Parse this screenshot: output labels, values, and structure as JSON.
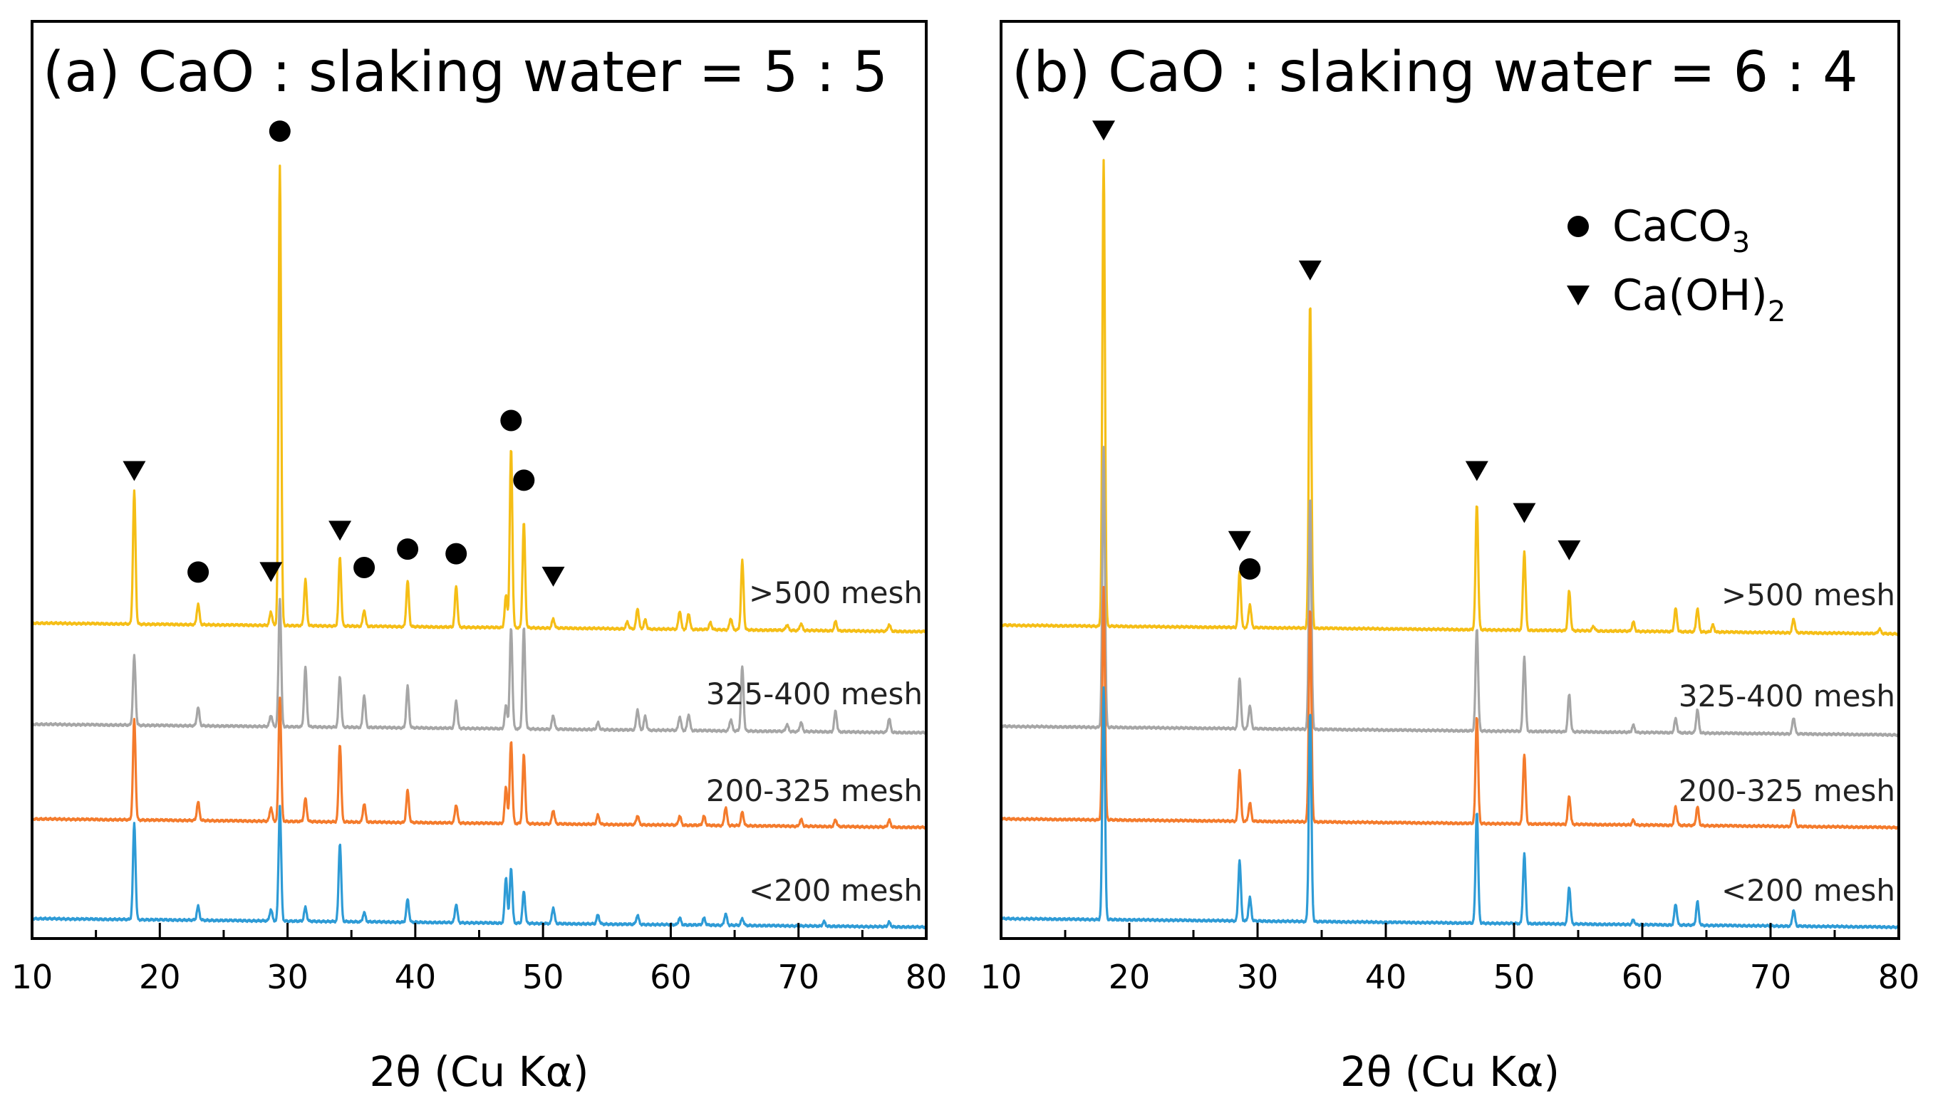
{
  "chart_data": [
    {
      "type": "line",
      "panel": "a",
      "title": "(a) CaO : slaking water = 5 : 5",
      "xlabel": "2θ (Cu Kα)",
      "ylabel": "",
      "xlim": [
        10,
        80
      ],
      "xticks": [
        10,
        20,
        30,
        40,
        50,
        60,
        70,
        80
      ],
      "xtick_labels": [
        "10",
        "20",
        "30",
        "40",
        "50",
        "60",
        "70",
        "80"
      ],
      "grid": false,
      "series": [
        {
          "name": ">500 mesh",
          "color": "#F5BE16",
          "peaks": [
            {
              "x": 18.0,
              "h": 0.29
            },
            {
              "x": 23.0,
              "h": 0.045
            },
            {
              "x": 28.7,
              "h": 0.03
            },
            {
              "x": 29.4,
              "h": 1.0
            },
            {
              "x": 31.4,
              "h": 0.1
            },
            {
              "x": 34.1,
              "h": 0.15
            },
            {
              "x": 36.0,
              "h": 0.035
            },
            {
              "x": 39.4,
              "h": 0.1
            },
            {
              "x": 43.2,
              "h": 0.09
            },
            {
              "x": 47.1,
              "h": 0.07
            },
            {
              "x": 47.5,
              "h": 0.39
            },
            {
              "x": 48.5,
              "h": 0.23
            },
            {
              "x": 50.8,
              "h": 0.02
            },
            {
              "x": 56.6,
              "h": 0.015
            },
            {
              "x": 57.4,
              "h": 0.045
            },
            {
              "x": 58.0,
              "h": 0.02
            },
            {
              "x": 60.7,
              "h": 0.04
            },
            {
              "x": 61.4,
              "h": 0.035
            },
            {
              "x": 63.1,
              "h": 0.015
            },
            {
              "x": 64.7,
              "h": 0.025
            },
            {
              "x": 65.6,
              "h": 0.15
            },
            {
              "x": 69.1,
              "h": 0.012
            },
            {
              "x": 70.2,
              "h": 0.015
            },
            {
              "x": 72.9,
              "h": 0.02
            },
            {
              "x": 77.1,
              "h": 0.015
            }
          ]
        },
        {
          "name": "325-400 mesh",
          "color": "#A6A6A6",
          "peaks": [
            {
              "x": 18.0,
              "h": 0.15
            },
            {
              "x": 23.0,
              "h": 0.04
            },
            {
              "x": 28.7,
              "h": 0.025
            },
            {
              "x": 29.4,
              "h": 0.28
            },
            {
              "x": 31.4,
              "h": 0.13
            },
            {
              "x": 34.1,
              "h": 0.11
            },
            {
              "x": 36.0,
              "h": 0.07
            },
            {
              "x": 39.4,
              "h": 0.09
            },
            {
              "x": 43.2,
              "h": 0.06
            },
            {
              "x": 47.1,
              "h": 0.05
            },
            {
              "x": 47.5,
              "h": 0.22
            },
            {
              "x": 48.5,
              "h": 0.22
            },
            {
              "x": 50.8,
              "h": 0.03
            },
            {
              "x": 54.3,
              "h": 0.015
            },
            {
              "x": 57.4,
              "h": 0.045
            },
            {
              "x": 58.0,
              "h": 0.03
            },
            {
              "x": 60.7,
              "h": 0.03
            },
            {
              "x": 61.4,
              "h": 0.035
            },
            {
              "x": 64.7,
              "h": 0.025
            },
            {
              "x": 65.6,
              "h": 0.14
            },
            {
              "x": 69.1,
              "h": 0.015
            },
            {
              "x": 70.2,
              "h": 0.02
            },
            {
              "x": 72.9,
              "h": 0.045
            },
            {
              "x": 77.1,
              "h": 0.03
            }
          ]
        },
        {
          "name": "200-325 mesh",
          "color": "#F47B2C",
          "peaks": [
            {
              "x": 18.0,
              "h": 0.22
            },
            {
              "x": 23.0,
              "h": 0.04
            },
            {
              "x": 28.7,
              "h": 0.03
            },
            {
              "x": 29.4,
              "h": 0.27
            },
            {
              "x": 31.4,
              "h": 0.05
            },
            {
              "x": 34.1,
              "h": 0.17
            },
            {
              "x": 36.0,
              "h": 0.04
            },
            {
              "x": 39.4,
              "h": 0.07
            },
            {
              "x": 43.2,
              "h": 0.04
            },
            {
              "x": 47.1,
              "h": 0.08
            },
            {
              "x": 47.5,
              "h": 0.18
            },
            {
              "x": 48.5,
              "h": 0.15
            },
            {
              "x": 50.8,
              "h": 0.03
            },
            {
              "x": 54.3,
              "h": 0.02
            },
            {
              "x": 57.4,
              "h": 0.02
            },
            {
              "x": 60.7,
              "h": 0.02
            },
            {
              "x": 62.6,
              "h": 0.02
            },
            {
              "x": 64.3,
              "h": 0.04
            },
            {
              "x": 65.6,
              "h": 0.03
            },
            {
              "x": 70.2,
              "h": 0.015
            },
            {
              "x": 72.9,
              "h": 0.015
            },
            {
              "x": 77.1,
              "h": 0.015
            }
          ]
        },
        {
          "name": "<200 mesh",
          "color": "#2E9BD6",
          "peaks": [
            {
              "x": 18.0,
              "h": 0.21
            },
            {
              "x": 23.0,
              "h": 0.03
            },
            {
              "x": 28.7,
              "h": 0.025
            },
            {
              "x": 29.4,
              "h": 0.25
            },
            {
              "x": 31.4,
              "h": 0.03
            },
            {
              "x": 34.1,
              "h": 0.17
            },
            {
              "x": 36.0,
              "h": 0.02
            },
            {
              "x": 39.4,
              "h": 0.05
            },
            {
              "x": 43.2,
              "h": 0.04
            },
            {
              "x": 47.1,
              "h": 0.1
            },
            {
              "x": 47.5,
              "h": 0.12
            },
            {
              "x": 48.5,
              "h": 0.07
            },
            {
              "x": 50.8,
              "h": 0.035
            },
            {
              "x": 54.3,
              "h": 0.02
            },
            {
              "x": 57.4,
              "h": 0.02
            },
            {
              "x": 60.7,
              "h": 0.015
            },
            {
              "x": 62.6,
              "h": 0.015
            },
            {
              "x": 64.3,
              "h": 0.025
            },
            {
              "x": 65.6,
              "h": 0.015
            },
            {
              "x": 72.0,
              "h": 0.01
            },
            {
              "x": 77.1,
              "h": 0.01
            }
          ]
        }
      ],
      "markers": [
        {
          "x": 18.0,
          "phase": "Ca(OH)2",
          "level": 0.3
        },
        {
          "x": 23.0,
          "phase": "CaCO3",
          "level": 0.08
        },
        {
          "x": 28.7,
          "phase": "Ca(OH)2",
          "level": 0.08
        },
        {
          "x": 29.4,
          "phase": "CaCO3",
          "level": 1.04
        },
        {
          "x": 34.1,
          "phase": "Ca(OH)2",
          "level": 0.17
        },
        {
          "x": 36.0,
          "phase": "CaCO3",
          "level": 0.09
        },
        {
          "x": 39.4,
          "phase": "CaCO3",
          "level": 0.13
        },
        {
          "x": 43.2,
          "phase": "CaCO3",
          "level": 0.12
        },
        {
          "x": 47.5,
          "phase": "CaCO3",
          "level": 0.41
        },
        {
          "x": 48.5,
          "phase": "CaCO3",
          "level": 0.28
        },
        {
          "x": 50.8,
          "phase": "Ca(OH)2",
          "level": 0.07
        }
      ]
    },
    {
      "type": "line",
      "panel": "b",
      "title": "(b) CaO : slaking water = 6 : 4",
      "xlabel": "2θ (Cu Kα)",
      "ylabel": "",
      "xlim": [
        10,
        80
      ],
      "xticks": [
        10,
        20,
        30,
        40,
        50,
        60,
        70,
        80
      ],
      "xtick_labels": [
        "10",
        "20",
        "30",
        "40",
        "50",
        "60",
        "70",
        "80"
      ],
      "grid": false,
      "legend": {
        "position": "top-right",
        "entries": [
          {
            "symbol": "circle",
            "label": "CaCO",
            "sub": "3"
          },
          {
            "symbol": "triangle",
            "label": "Ca(OH)",
            "sub": "2"
          }
        ]
      },
      "series": [
        {
          "name": ">500 mesh",
          "color": "#F5BE16",
          "peaks": [
            {
              "x": 18.0,
              "h": 1.0
            },
            {
              "x": 28.6,
              "h": 0.12
            },
            {
              "x": 29.4,
              "h": 0.05
            },
            {
              "x": 34.1,
              "h": 0.7
            },
            {
              "x": 47.1,
              "h": 0.27
            },
            {
              "x": 50.8,
              "h": 0.17
            },
            {
              "x": 54.3,
              "h": 0.085
            },
            {
              "x": 56.2,
              "h": 0.01
            },
            {
              "x": 59.3,
              "h": 0.02
            },
            {
              "x": 62.6,
              "h": 0.05
            },
            {
              "x": 64.3,
              "h": 0.05
            },
            {
              "x": 65.5,
              "h": 0.015
            },
            {
              "x": 71.8,
              "h": 0.03
            },
            {
              "x": 78.5,
              "h": 0.01
            }
          ]
        },
        {
          "name": "325-400 mesh",
          "color": "#A6A6A6",
          "peaks": [
            {
              "x": 18.0,
              "h": 0.6
            },
            {
              "x": 28.6,
              "h": 0.11
            },
            {
              "x": 29.4,
              "h": 0.05
            },
            {
              "x": 34.1,
              "h": 0.5
            },
            {
              "x": 47.1,
              "h": 0.22
            },
            {
              "x": 50.8,
              "h": 0.16
            },
            {
              "x": 54.3,
              "h": 0.08
            },
            {
              "x": 59.3,
              "h": 0.015
            },
            {
              "x": 62.6,
              "h": 0.03
            },
            {
              "x": 64.3,
              "h": 0.05
            },
            {
              "x": 71.8,
              "h": 0.035
            }
          ]
        },
        {
          "name": "200-325 mesh",
          "color": "#F47B2C",
          "peaks": [
            {
              "x": 18.0,
              "h": 0.5
            },
            {
              "x": 28.6,
              "h": 0.11
            },
            {
              "x": 29.4,
              "h": 0.04
            },
            {
              "x": 34.1,
              "h": 0.46
            },
            {
              "x": 47.1,
              "h": 0.23
            },
            {
              "x": 50.8,
              "h": 0.15
            },
            {
              "x": 54.3,
              "h": 0.06
            },
            {
              "x": 59.3,
              "h": 0.01
            },
            {
              "x": 62.6,
              "h": 0.04
            },
            {
              "x": 64.3,
              "h": 0.04
            },
            {
              "x": 71.8,
              "h": 0.035
            }
          ]
        },
        {
          "name": "<200 mesh",
          "color": "#2E9BD6",
          "peaks": [
            {
              "x": 18.0,
              "h": 0.5
            },
            {
              "x": 28.6,
              "h": 0.13
            },
            {
              "x": 29.4,
              "h": 0.05
            },
            {
              "x": 34.1,
              "h": 0.45
            },
            {
              "x": 47.1,
              "h": 0.24
            },
            {
              "x": 50.8,
              "h": 0.15
            },
            {
              "x": 54.3,
              "h": 0.08
            },
            {
              "x": 59.3,
              "h": 0.01
            },
            {
              "x": 62.6,
              "h": 0.045
            },
            {
              "x": 64.3,
              "h": 0.05
            },
            {
              "x": 71.8,
              "h": 0.035
            }
          ]
        }
      ],
      "markers": [
        {
          "x": 18.0,
          "phase": "Ca(OH)2",
          "level": 1.03
        },
        {
          "x": 28.6,
          "phase": "Ca(OH)2",
          "level": 0.15
        },
        {
          "x": 29.4,
          "phase": "CaCO3",
          "level": 0.09
        },
        {
          "x": 34.1,
          "phase": "Ca(OH)2",
          "level": 0.73
        },
        {
          "x": 47.1,
          "phase": "Ca(OH)2",
          "level": 0.3
        },
        {
          "x": 50.8,
          "phase": "Ca(OH)2",
          "level": 0.21
        },
        {
          "x": 54.3,
          "phase": "Ca(OH)2",
          "level": 0.13
        }
      ]
    }
  ]
}
